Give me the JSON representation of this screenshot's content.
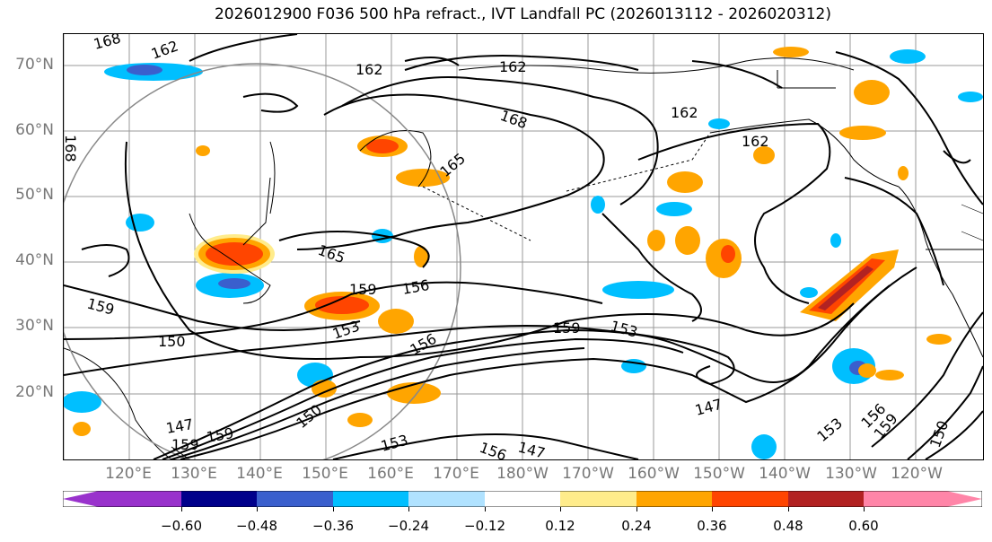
{
  "title": "2026012900 F036 500 hPa refract., IVT Landfall PC (2026013112 - 2026020312)",
  "lat_labels": [
    "70°N",
    "60°N",
    "50°N",
    "40°N",
    "30°N",
    "20°N"
  ],
  "lon_labels": [
    "120°E",
    "130°E",
    "140°E",
    "150°E",
    "160°E",
    "170°E",
    "180°W",
    "170°W",
    "160°W",
    "150°W",
    "140°W",
    "130°W",
    "120°W"
  ],
  "contour_labels": [
    "168",
    "162",
    "162",
    "162",
    "168",
    "162",
    "162",
    "165",
    "165",
    "159",
    "156",
    "159",
    "153",
    "150",
    "156",
    "159",
    "153",
    "147",
    "153",
    "156",
    "159",
    "150",
    "147",
    "159",
    "159",
    "153",
    "156",
    "147",
    "150",
    "168"
  ],
  "colorbar": {
    "colors": [
      "#9932cc",
      "#00008b",
      "#3a5fcd",
      "#00bfff",
      "#b0e2ff",
      "#ffffff",
      "#ffec8b",
      "#ffa500",
      "#ff4500",
      "#b22222",
      "#ff85a8"
    ],
    "tick_labels": [
      "−0.60",
      "−0.48",
      "−0.36",
      "−0.24",
      "−0.12",
      "0.12",
      "0.24",
      "0.36",
      "0.48",
      "0.60"
    ]
  },
  "shading_colors": {
    "neg_light": "#b0e2ff",
    "neg_mid": "#00bfff",
    "neg_strong": "#3a5fcd",
    "pos_light": "#ffec8b",
    "pos_mid": "#ffa500",
    "pos_strong": "#ff4500"
  }
}
